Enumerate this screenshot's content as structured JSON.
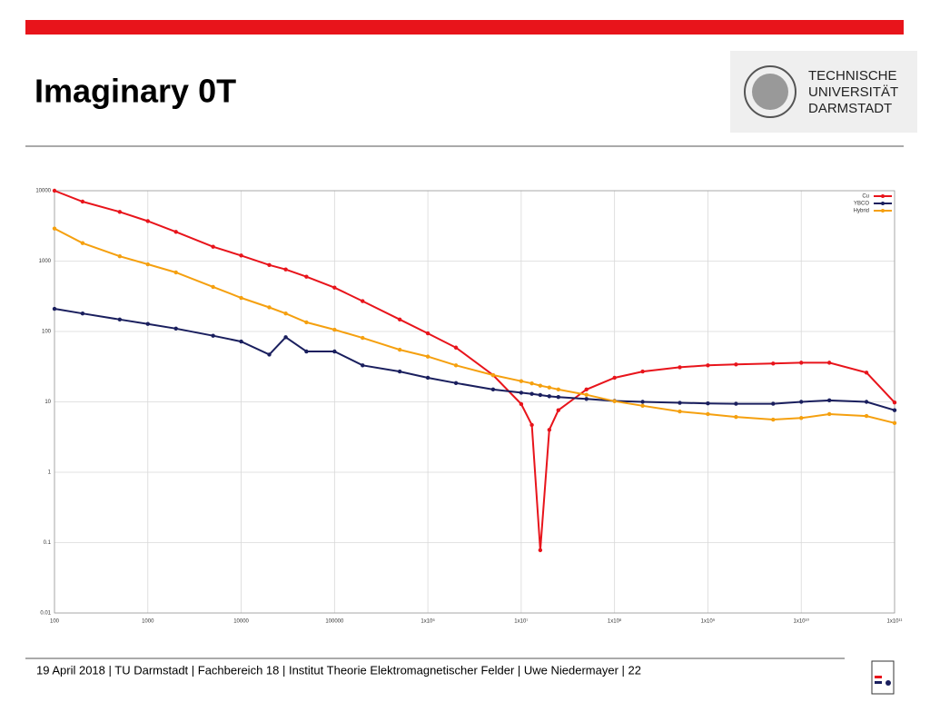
{
  "slide_title": "Imaginary 0T",
  "logo": {
    "lines": [
      "TECHNISCHE",
      "UNIVERSITÄT",
      "DARMSTADT"
    ]
  },
  "footer": "19 April 2018  |  TU Darmstadt  |  Fachbereich 18  |  Institut Theorie Elektromagnetischer Felder  | Uwe Niedermayer  |  22",
  "chart_data": {
    "type": "line",
    "log_x": true,
    "log_y": true,
    "grid": true,
    "legend": "upper right",
    "x": [
      100,
      200,
      500,
      1000,
      2000,
      5000,
      10000,
      20000,
      30000,
      50000,
      100000,
      200000,
      500000,
      1000000,
      2000000,
      5000000,
      10000000,
      13000000,
      16000000,
      20000000,
      25000000,
      50000000,
      100000000,
      200000000,
      500000000,
      1000000000,
      2000000000,
      5000000000,
      10000000000,
      20000000000,
      50000000000,
      100000000000
    ],
    "series": [
      {
        "name": "Cu",
        "color": "#e8141b",
        "values": [
          10000,
          7000,
          5000,
          3700,
          2600,
          1600,
          1200,
          880,
          760,
          600,
          420,
          270,
          148,
          94,
          59,
          24,
          9.3,
          4.7,
          0.078,
          4,
          7.6,
          15,
          22,
          27,
          31,
          33,
          34,
          35,
          36,
          36,
          26,
          9.8
        ]
      },
      {
        "name": "YBCO",
        "color": "#1a1f5e",
        "values": [
          210,
          180,
          148,
          128,
          110,
          87,
          72,
          47,
          83,
          52,
          52,
          33,
          27,
          22,
          18.5,
          15,
          13.5,
          13,
          12.5,
          12,
          11.7,
          11,
          10.3,
          10,
          9.7,
          9.5,
          9.4,
          9.4,
          10,
          10.5,
          10,
          7.6
        ]
      },
      {
        "name": "Hybrid",
        "color": "#f5a00f",
        "values": [
          2900,
          1800,
          1170,
          900,
          690,
          430,
          300,
          220,
          180,
          135,
          106,
          81,
          55,
          44,
          33,
          24,
          19.7,
          18.3,
          17,
          16,
          15,
          12.6,
          10.2,
          8.8,
          7.3,
          6.7,
          6.1,
          5.6,
          5.9,
          6.7,
          6.3,
          5.0
        ]
      }
    ],
    "xlim": [
      100,
      100000000000
    ],
    "xticks": [
      100,
      1000,
      10000,
      100000,
      {
        "value": 1000000,
        "label": "1x10⁶"
      },
      {
        "value": 10000000,
        "label": "1x10⁷"
      },
      {
        "value": 100000000,
        "label": "1x10⁸"
      },
      {
        "value": 1000000000,
        "label": "1x10⁹"
      },
      {
        "value": 10000000000,
        "label": "1x10¹⁰"
      },
      {
        "value": 100000000000,
        "label": "1x10¹¹"
      }
    ],
    "ylim": [
      0.01,
      10000
    ],
    "yticks": [
      0.01,
      0.1,
      1,
      10,
      100,
      1000,
      10000
    ]
  }
}
